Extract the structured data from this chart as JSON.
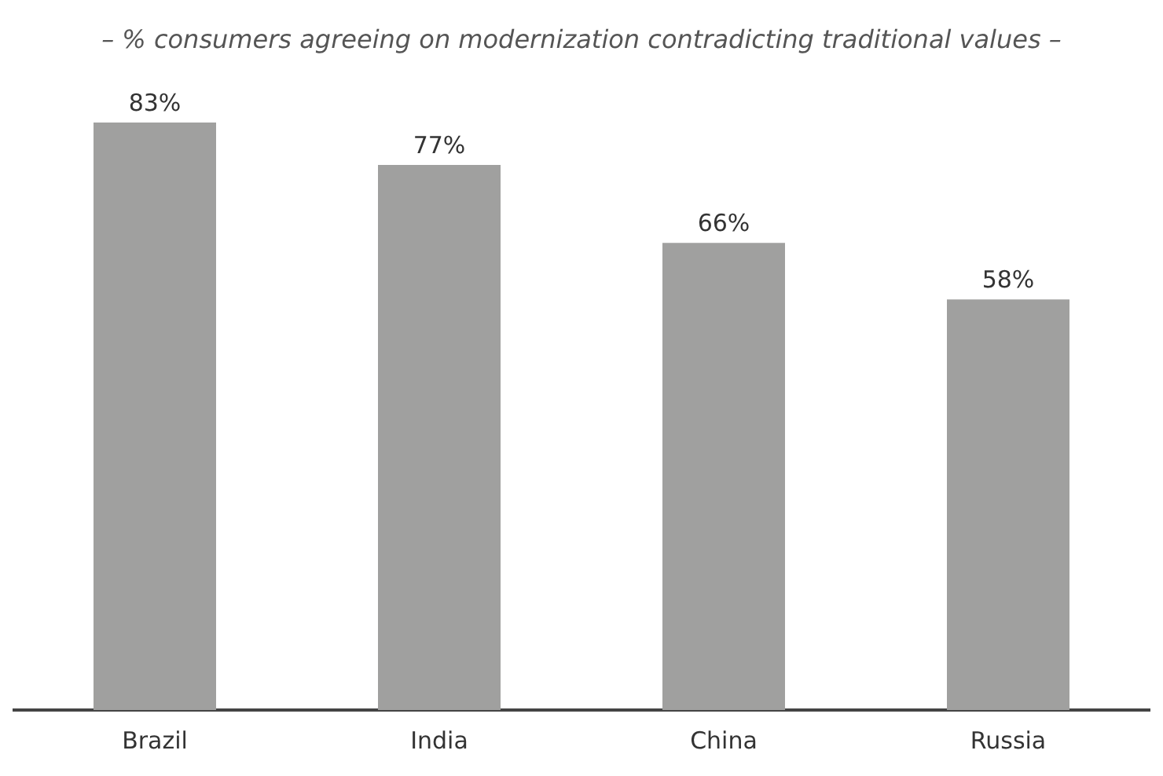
{
  "chart_data": {
    "type": "bar",
    "title": "– % consumers agreeing on modernization contradicting traditional values –",
    "categories": [
      "Brazil",
      "India",
      "China",
      "Russia"
    ],
    "values": [
      83,
      77,
      66,
      58
    ],
    "value_labels": [
      "83%",
      "77%",
      "66%",
      "58%"
    ],
    "color": "#a0a09f"
  }
}
